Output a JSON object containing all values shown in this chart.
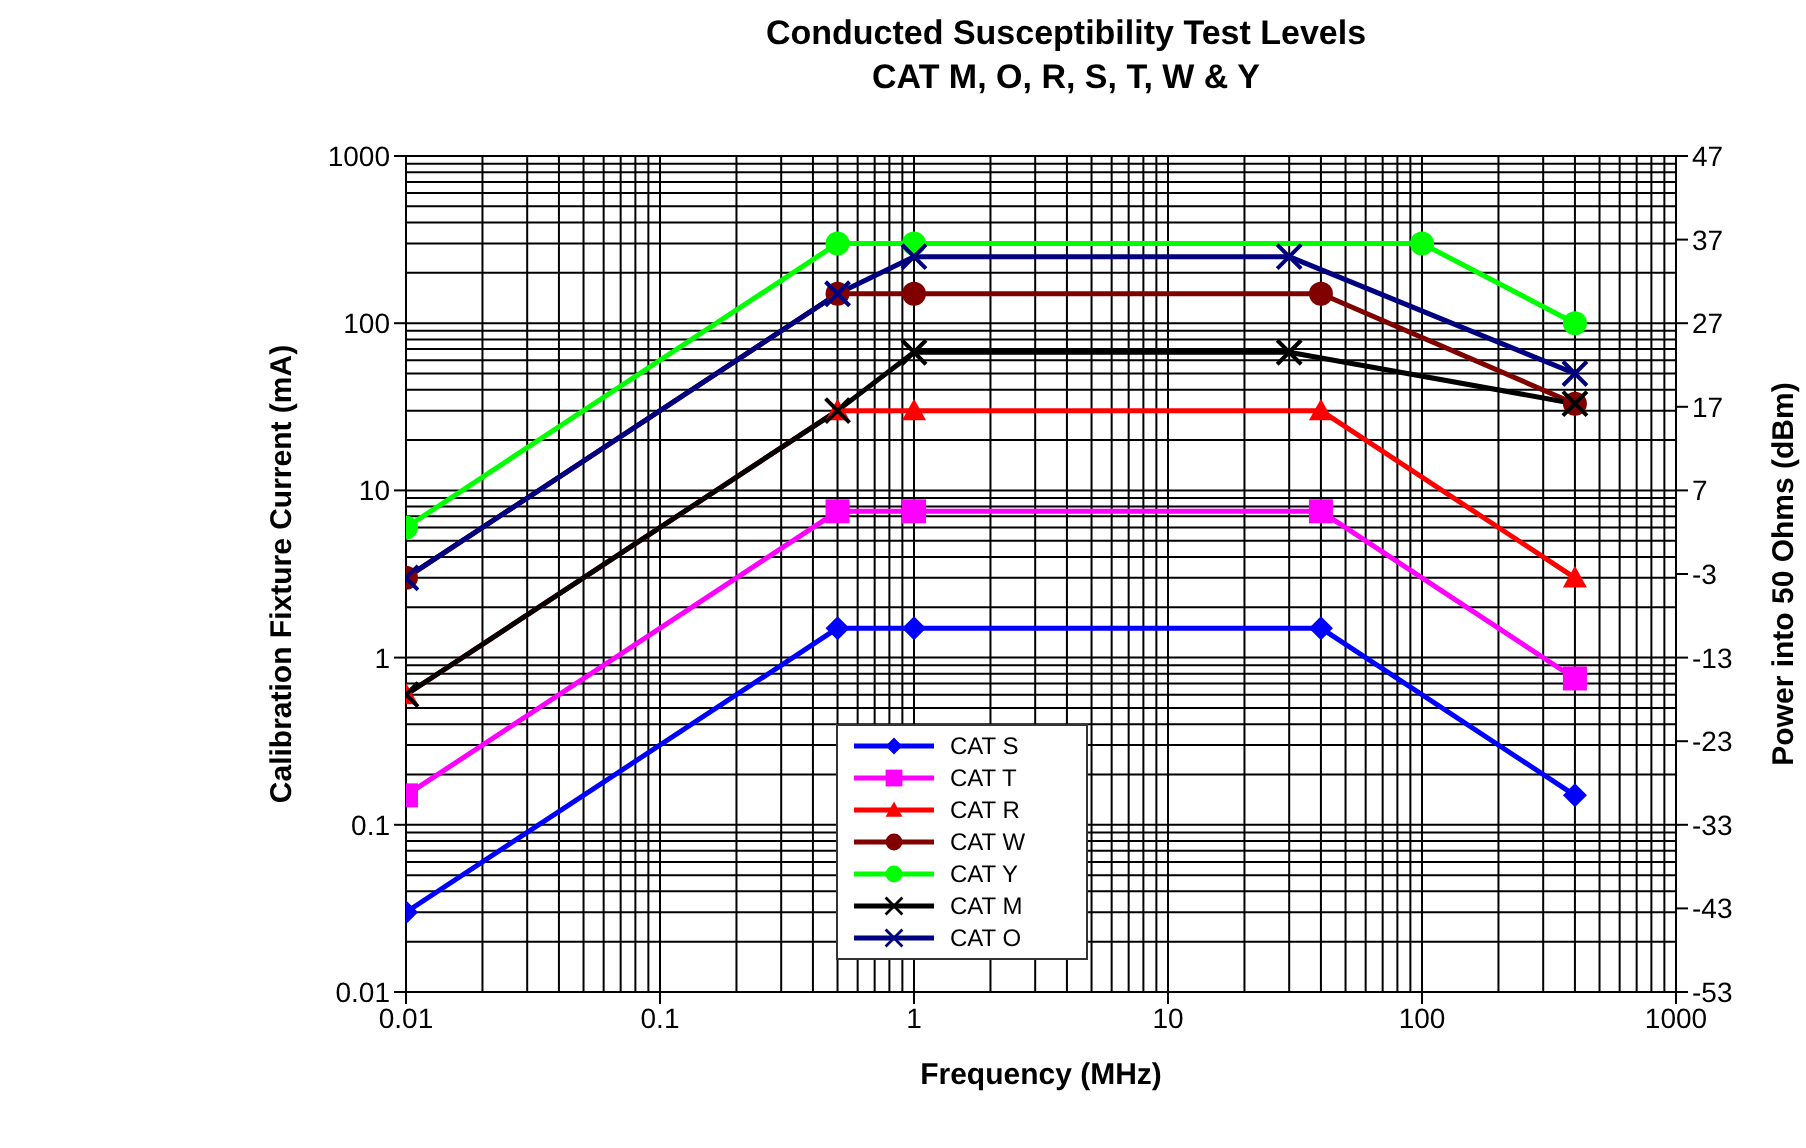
{
  "chart_data": {
    "type": "line",
    "title": "Conducted Susceptibility Test Levels",
    "subtitle": "CAT M, O, R, S, T, W & Y",
    "xlabel": "Frequency (MHz)",
    "ylabel": "Calibration Fixture Current (mA)",
    "y2label": "Power into 50 Ohms (dBm)",
    "log": "xy",
    "grid": true,
    "legend": "bottom",
    "line_style": "solid",
    "xlim": [
      0.01,
      1000
    ],
    "xticks": [
      0.01,
      0.1,
      1,
      10,
      100,
      1000
    ],
    "ylim": [
      0.01,
      1000
    ],
    "yticks": [
      0.01,
      0.1,
      1,
      10,
      100,
      1000
    ],
    "y2lim": [
      -53,
      47
    ],
    "y2ticks": [
      -53,
      -43,
      -33,
      -23,
      -13,
      -3,
      7,
      17,
      27,
      37,
      47
    ],
    "series": [
      {
        "name": "CAT S",
        "color": "#0000ff",
        "marker": "diamond",
        "x": [
          0.01,
          0.5,
          1,
          40,
          400
        ],
        "values": [
          0.03,
          1.5,
          1.5,
          1.5,
          0.15
        ]
      },
      {
        "name": "CAT T",
        "color": "#ff00ff",
        "marker": "square",
        "x": [
          0.01,
          0.5,
          1,
          40,
          400
        ],
        "values": [
          0.15,
          7.5,
          7.5,
          7.5,
          0.75
        ]
      },
      {
        "name": "CAT R",
        "color": "#ff0000",
        "marker": "triangle",
        "x": [
          0.01,
          0.5,
          1,
          40,
          400
        ],
        "values": [
          0.6,
          30,
          30,
          30,
          3
        ]
      },
      {
        "name": "CAT W",
        "color": "#800000",
        "marker": "circle",
        "x": [
          0.01,
          0.5,
          1,
          40,
          400
        ],
        "values": [
          3,
          150,
          150,
          150,
          33
        ]
      },
      {
        "name": "CAT Y",
        "color": "#00ff00",
        "marker": "circle",
        "x": [
          0.01,
          0.5,
          1,
          100,
          400
        ],
        "values": [
          6,
          300,
          300,
          300,
          100
        ]
      },
      {
        "name": "CAT M",
        "color": "#000000",
        "marker": "cross",
        "x": [
          0.01,
          0.5,
          1,
          30,
          400
        ],
        "values": [
          0.6,
          30,
          67,
          67,
          33
        ]
      },
      {
        "name": "CAT O",
        "color": "#000080",
        "marker": "cross",
        "x": [
          0.01,
          0.5,
          1,
          30,
          400
        ],
        "values": [
          3,
          150,
          250,
          250,
          50
        ]
      }
    ]
  }
}
